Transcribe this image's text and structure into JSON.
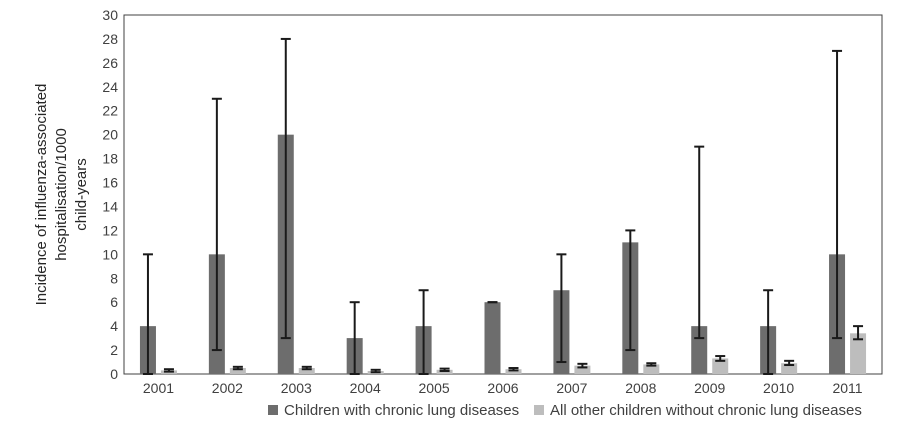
{
  "chart_data": {
    "type": "bar",
    "title": "",
    "xlabel": "",
    "ylabel_lines": [
      "Incidence of influenza-associated",
      "hospitalisation/1000",
      "child-years"
    ],
    "ylim": [
      0,
      30
    ],
    "yticks": [
      0,
      2,
      4,
      6,
      8,
      10,
      12,
      14,
      16,
      18,
      20,
      22,
      24,
      26,
      28,
      30
    ],
    "categories": [
      "2001",
      "2002",
      "2003",
      "2004",
      "2005",
      "2006",
      "2007",
      "2008",
      "2009",
      "2010",
      "2011"
    ],
    "series": [
      {
        "name": "Children with chronic lung diseases",
        "color": "#6d6d6d",
        "values": [
          4,
          10,
          20,
          3,
          4,
          6,
          7,
          11,
          4,
          4,
          10
        ],
        "error_low": [
          0,
          2,
          3,
          0,
          0,
          6,
          1,
          2,
          3,
          0,
          3
        ],
        "error_high": [
          10,
          23,
          28,
          6,
          7,
          6,
          10,
          12,
          19,
          7,
          27
        ]
      },
      {
        "name": "All other children without chronic lung diseases",
        "color": "#bdbdbd",
        "values": [
          0.3,
          0.5,
          0.5,
          0.25,
          0.35,
          0.4,
          0.7,
          0.8,
          1.3,
          0.9,
          3.4
        ],
        "error_low": [
          0.2,
          0.4,
          0.4,
          0.15,
          0.25,
          0.3,
          0.55,
          0.7,
          1.1,
          0.75,
          2.9
        ],
        "error_high": [
          0.4,
          0.6,
          0.6,
          0.35,
          0.45,
          0.5,
          0.85,
          0.9,
          1.5,
          1.1,
          4.0
        ]
      }
    ],
    "grid": false,
    "legend_position": "bottom"
  },
  "colors": {
    "axis": "#404040",
    "error_bar": "#1a1a1a"
  }
}
